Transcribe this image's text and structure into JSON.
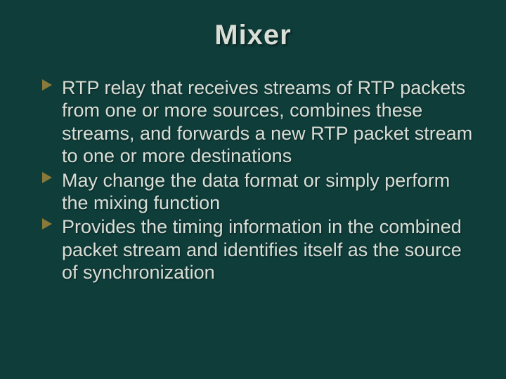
{
  "slide": {
    "background_color": "#0f3d3a",
    "text_color": "#d9ded6",
    "bullet_arrow_color": "#8a7a3a",
    "title": "Mixer",
    "title_fontsize": 40,
    "body_fontsize": 27,
    "bullets": [
      "RTP relay that receives streams of RTP packets from one or more sources, combines these streams, and forwards a new RTP packet stream to one or more destinations",
      "May change the data format or simply perform the mixing function",
      "Provides the timing information in the combined packet stream and identifies itself as the source of synchronization"
    ]
  }
}
